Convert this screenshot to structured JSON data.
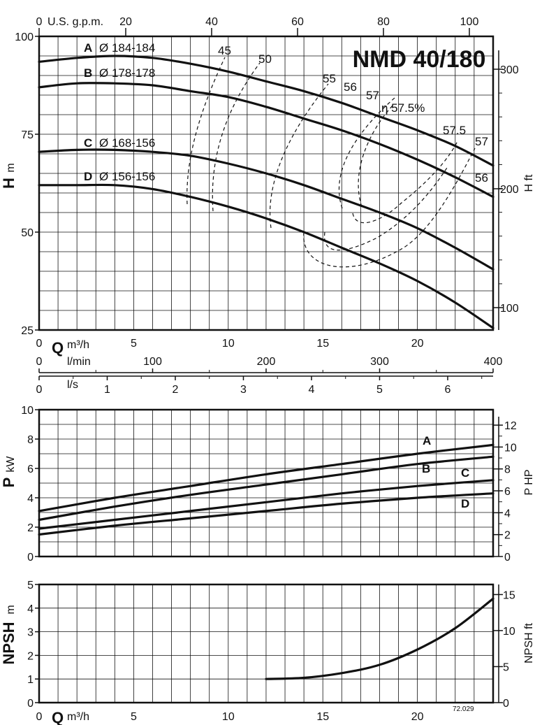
{
  "chart_data": [
    {
      "type": "line",
      "title": "NMD 40/180",
      "ylabel": "H",
      "ylabel_unit": "m",
      "ylabel_right": "H ft",
      "xlabel": "Q",
      "xlabel_unit": "m³/h",
      "top_axis_label": "U.S. g.p.m.",
      "flow_axes": [
        {
          "label": "l/min",
          "ticks": [
            "0",
            "100",
            "200",
            "300",
            "400"
          ]
        },
        {
          "label": "l/s",
          "ticks": [
            "0",
            "1",
            "2",
            "3",
            "4",
            "5",
            "6"
          ]
        }
      ],
      "x_ticks": [
        "0",
        "5",
        "10",
        "15",
        "20"
      ],
      "y_ticks": [
        "25",
        "50",
        "75",
        "100"
      ],
      "top_ticks": [
        "0",
        "20",
        "40",
        "60",
        "80",
        "100"
      ],
      "right_ticks": [
        "100",
        "200",
        "300"
      ],
      "xlim": [
        0,
        24
      ],
      "ylim": [
        25,
        100
      ],
      "series": [
        {
          "name": "A",
          "label": "Ø 184-184",
          "x": [
            0,
            2,
            4,
            6,
            8,
            10,
            12,
            14,
            16,
            18,
            20,
            22,
            24
          ],
          "y": [
            93.5,
            94.5,
            95,
            94.5,
            93,
            91,
            88.5,
            86,
            83,
            79.5,
            76,
            72,
            67
          ]
        },
        {
          "name": "B",
          "label": "Ø 178-178",
          "x": [
            0,
            2,
            4,
            6,
            8,
            10,
            12,
            14,
            16,
            18,
            20,
            22,
            24
          ],
          "y": [
            87,
            88,
            88,
            87.5,
            86,
            84.5,
            82,
            79,
            76,
            72.5,
            68.5,
            64,
            59
          ]
        },
        {
          "name": "C",
          "label": "Ø 168-156",
          "x": [
            0,
            2,
            4,
            6,
            8,
            10,
            12,
            14,
            16,
            18,
            20,
            22,
            24
          ],
          "y": [
            70.5,
            71,
            71,
            70.5,
            69.5,
            67.5,
            65,
            62,
            58.5,
            55,
            51,
            46,
            40.5
          ]
        },
        {
          "name": "D",
          "label": "Ø 156-156",
          "x": [
            0,
            2,
            4,
            6,
            8,
            10,
            12,
            14,
            16,
            18,
            20,
            22,
            24
          ],
          "y": [
            62,
            62,
            62,
            61,
            59,
            56.5,
            53.5,
            50,
            46,
            42,
            37.5,
            32,
            25.5
          ]
        }
      ],
      "efficiency_labels": [
        "45",
        "50",
        "55",
        "56",
        "57",
        "η 57.5%",
        "57.5",
        "57",
        "56"
      ]
    },
    {
      "type": "line",
      "ylabel": "P",
      "ylabel_unit": "kW",
      "ylabel_right": "P HP",
      "y_ticks": [
        "0",
        "2",
        "4",
        "6",
        "8",
        "10"
      ],
      "right_ticks": [
        "0",
        "2",
        "4",
        "6",
        "8",
        "10",
        "12"
      ],
      "xlim": [
        0,
        24
      ],
      "ylim": [
        0,
        10
      ],
      "series": [
        {
          "name": "A",
          "x": [
            0,
            4,
            8,
            12,
            16,
            20,
            24
          ],
          "y": [
            3.1,
            4.0,
            4.8,
            5.6,
            6.3,
            7.0,
            7.6
          ]
        },
        {
          "name": "B",
          "x": [
            0,
            4,
            8,
            12,
            16,
            20,
            24
          ],
          "y": [
            2.5,
            3.4,
            4.2,
            4.9,
            5.6,
            6.3,
            6.8
          ]
        },
        {
          "name": "C",
          "x": [
            0,
            4,
            8,
            12,
            16,
            20,
            24
          ],
          "y": [
            1.9,
            2.5,
            3.1,
            3.7,
            4.3,
            4.8,
            5.2
          ]
        },
        {
          "name": "D",
          "x": [
            0,
            4,
            8,
            12,
            16,
            20,
            24
          ],
          "y": [
            1.5,
            2.1,
            2.6,
            3.1,
            3.6,
            4.0,
            4.3
          ]
        }
      ]
    },
    {
      "type": "line",
      "ylabel": "NPSH",
      "ylabel_unit": "m",
      "ylabel_right": "NPSH ft",
      "xlabel": "Q",
      "xlabel_unit": "m³/h",
      "x_ticks": [
        "0",
        "5",
        "10",
        "15",
        "20"
      ],
      "y_ticks": [
        "0",
        "1",
        "2",
        "3",
        "4",
        "5"
      ],
      "right_ticks": [
        "0",
        "5",
        "10",
        "15"
      ],
      "xlim": [
        0,
        24
      ],
      "ylim": [
        0,
        5
      ],
      "series": [
        {
          "name": "NPSH",
          "x": [
            12,
            14,
            16,
            18,
            20,
            22,
            24
          ],
          "y": [
            1.0,
            1.05,
            1.25,
            1.6,
            2.25,
            3.15,
            4.4
          ]
        }
      ],
      "note": "72.029"
    }
  ]
}
